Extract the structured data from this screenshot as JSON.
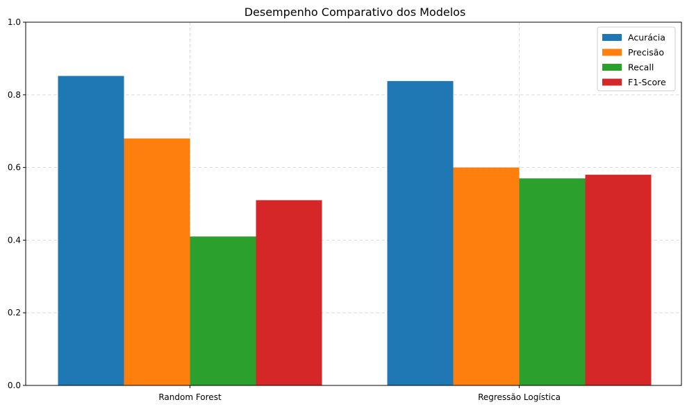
{
  "chart_data": {
    "type": "bar",
    "title": "Desempenho Comparativo dos Modelos",
    "xlabel": "",
    "ylabel": "",
    "categories": [
      "Random Forest",
      "Regressão Logística"
    ],
    "series": [
      {
        "name": "Acurácia",
        "values": [
          0.852,
          0.838
        ],
        "color": "#1f77b4"
      },
      {
        "name": "Precisão",
        "values": [
          0.68,
          0.6
        ],
        "color": "#ff7f0e"
      },
      {
        "name": "Recall",
        "values": [
          0.41,
          0.57
        ],
        "color": "#2ca02c"
      },
      {
        "name": "F1-Score",
        "values": [
          0.51,
          0.58
        ],
        "color": "#d62728"
      }
    ],
    "ylim": [
      0,
      1.0
    ],
    "yticks": [
      "0.0",
      "0.2",
      "0.4",
      "0.6",
      "0.8",
      "1.0"
    ],
    "grid": true,
    "legend_position": "top-right"
  }
}
